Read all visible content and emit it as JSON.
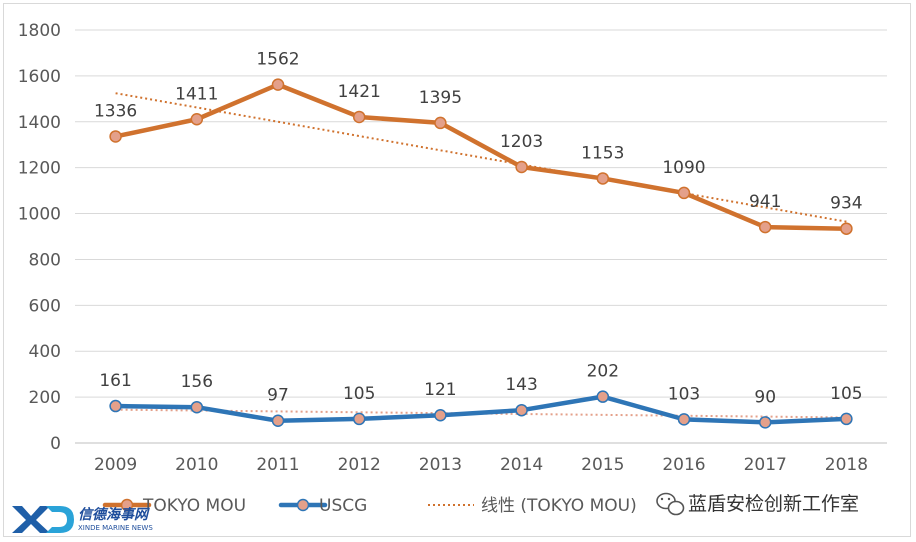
{
  "chart_data": {
    "type": "line",
    "categories": [
      "2009",
      "2010",
      "2011",
      "2012",
      "2013",
      "2014",
      "2015",
      "2016",
      "2017",
      "2018"
    ],
    "series": [
      {
        "name": "TOKYO MOU",
        "values": [
          1336,
          1411,
          1562,
          1421,
          1395,
          1203,
          1153,
          1090,
          941,
          934
        ],
        "color": "#d0722e",
        "marker_color": "#e4a08a"
      },
      {
        "name": "USCG",
        "values": [
          161,
          156,
          97,
          105,
          121,
          143,
          202,
          103,
          90,
          105
        ],
        "color": "#2e75b6",
        "marker_color": "#e4a08a"
      }
    ],
    "trendlines": [
      {
        "name": "线性 (TOKYO MOU)",
        "of_series": "TOKYO MOU",
        "type": "linear",
        "color": "#d0722e",
        "style": "dotted"
      },
      {
        "name": "",
        "of_series": "USCG",
        "type": "linear",
        "color": "#e4a08a",
        "style": "dotted"
      }
    ],
    "yticks": [
      "0",
      "200",
      "400",
      "600",
      "800",
      "1000",
      "1200",
      "1400",
      "1600",
      "1800"
    ],
    "ylim": [
      0,
      1800
    ],
    "grid": true,
    "legend_position": "bottom"
  },
  "watermark": {
    "logo_letters": "XD",
    "brand_name": "信德海事网",
    "brand_sub": "XINDE MARINE NEWS",
    "wechat_account": "蓝盾安检创新工作室"
  }
}
